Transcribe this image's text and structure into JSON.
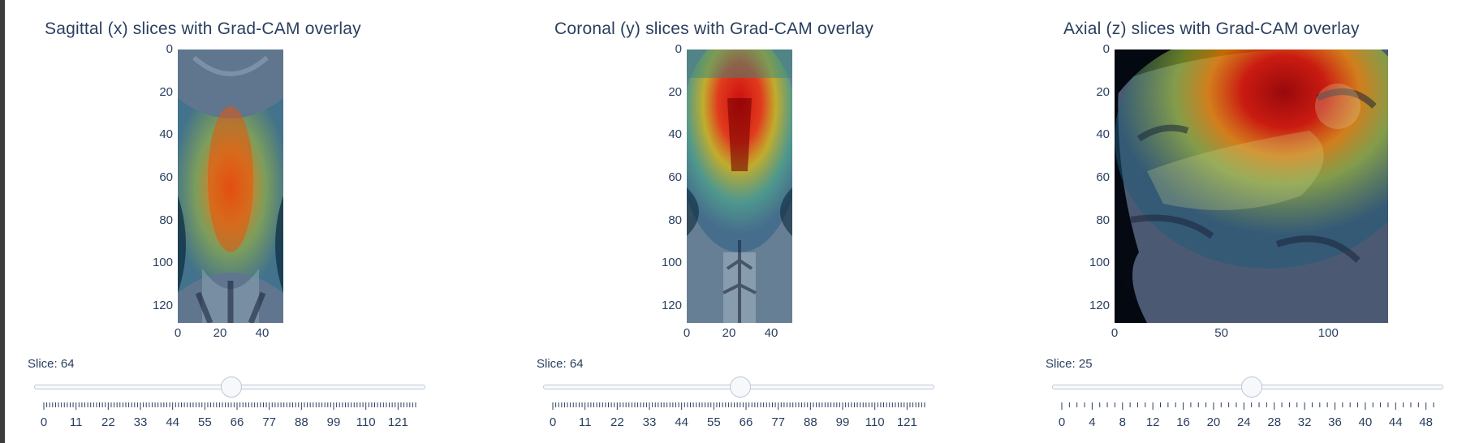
{
  "panels": [
    {
      "title": "Sagittal (x) slices with Grad-CAM overlay",
      "y_ticks": [
        "0",
        "20",
        "40",
        "60",
        "80",
        "100",
        "120"
      ],
      "x_ticks": [
        "0",
        "20",
        "40"
      ],
      "slider": {
        "prefix": "Slice: ",
        "value": "64",
        "min": 0,
        "max": 127,
        "labels": [
          "0",
          "11",
          "22",
          "33",
          "44",
          "55",
          "66",
          "77",
          "88",
          "99",
          "110",
          "121"
        ]
      }
    },
    {
      "title": "Coronal (y) slices with Grad-CAM overlay",
      "y_ticks": [
        "0",
        "20",
        "40",
        "60",
        "80",
        "100",
        "120"
      ],
      "x_ticks": [
        "0",
        "20",
        "40"
      ],
      "slider": {
        "prefix": "Slice: ",
        "value": "64",
        "min": 0,
        "max": 127,
        "labels": [
          "0",
          "11",
          "22",
          "33",
          "44",
          "55",
          "66",
          "77",
          "88",
          "99",
          "110",
          "121"
        ]
      }
    },
    {
      "title": "Axial (z) slices with Grad-CAM overlay",
      "y_ticks": [
        "0",
        "20",
        "40",
        "60",
        "80",
        "100",
        "120"
      ],
      "x_ticks": [
        "0",
        "50",
        "100"
      ],
      "slider": {
        "prefix": "Slice: ",
        "value": "25",
        "min": 0,
        "max": 49,
        "labels": [
          "0",
          "4",
          "8",
          "12",
          "16",
          "20",
          "24",
          "28",
          "32",
          "36",
          "40",
          "44",
          "48"
        ]
      }
    }
  ],
  "colors": {
    "text": "#2a3f5f",
    "rail_border": "#bec8d9"
  },
  "icons": {
    "slider_handle": "circle-handle"
  }
}
